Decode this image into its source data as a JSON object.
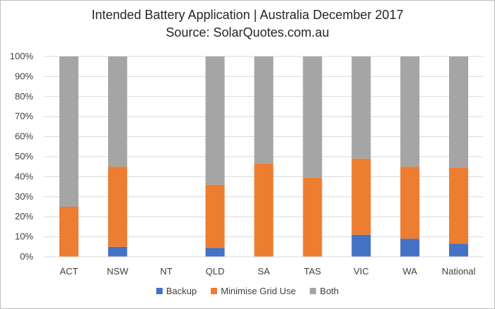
{
  "chart_data": {
    "type": "bar",
    "stacked": true,
    "title": "Intended Battery Application | Australia December 2017",
    "subtitle": "Source: SolarQuotes.com.au",
    "categories": [
      "ACT",
      "NSW",
      "NT",
      "QLD",
      "SA",
      "TAS",
      "VIC",
      "WA",
      "National"
    ],
    "series": [
      {
        "name": "Backup",
        "color": "#4472c4",
        "values": [
          0,
          5,
          0,
          4.5,
          0,
          0,
          11,
          9,
          6.5
        ]
      },
      {
        "name": "Minimise Grid Use",
        "color": "#ed7d31",
        "values": [
          25,
          40,
          0,
          31.5,
          46.5,
          39.5,
          38,
          36,
          38
        ]
      },
      {
        "name": "Both",
        "color": "#a5a5a5",
        "values": [
          75,
          55,
          0,
          64,
          53.5,
          60.5,
          51,
          55,
          55.5
        ]
      }
    ],
    "ylim": [
      0,
      100
    ],
    "yticks": [
      "0%",
      "10%",
      "20%",
      "30%",
      "40%",
      "50%",
      "60%",
      "70%",
      "80%",
      "90%",
      "100%"
    ],
    "grid": true,
    "legend": "bottom"
  }
}
